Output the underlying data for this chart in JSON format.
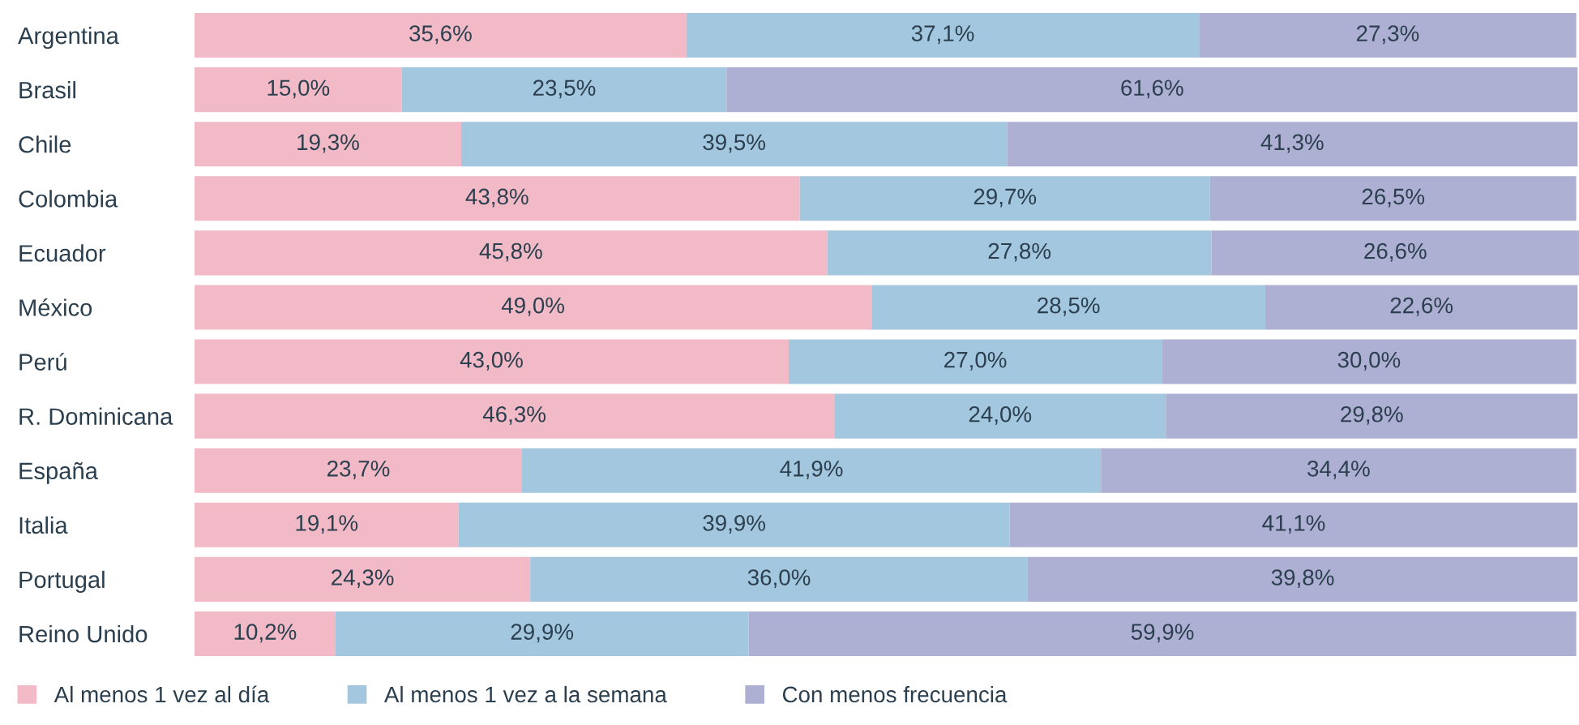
{
  "chart_data": {
    "type": "bar",
    "orientation": "horizontal",
    "stacked": true,
    "tick_labels": "y",
    "legend": "bottom",
    "grid": false,
    "categories": [
      "Argentina",
      "Brasil",
      "Chile",
      "Colombia",
      "Ecuador",
      "México",
      "Perú",
      "R. Dominicana",
      "España",
      "Italia",
      "Portugal",
      "Reino Unido"
    ],
    "series": [
      {
        "name": "Al menos 1 vez al día",
        "color": "#f1bac6",
        "values": [
          35.6,
          15.0,
          19.3,
          43.8,
          45.8,
          49.0,
          43.0,
          46.3,
          23.7,
          19.1,
          24.3,
          10.2
        ],
        "value_labels": [
          "35,6%",
          "15,0%",
          "19,3%",
          "43,8%",
          "45,8%",
          "49,0%",
          "43,0%",
          "46,3%",
          "23,7%",
          "19,1%",
          "24,3%",
          "10,2%"
        ]
      },
      {
        "name": "Al menos 1 vez a la semana",
        "color": "#a3c7de",
        "values": [
          37.1,
          23.5,
          39.5,
          29.7,
          27.8,
          28.5,
          27.0,
          24.0,
          41.9,
          39.9,
          36.0,
          29.9
        ],
        "value_labels": [
          "37,1%",
          "23,5%",
          "39,5%",
          "29,7%",
          "27,8%",
          "28,5%",
          "27,0%",
          "24,0%",
          "41,9%",
          "39,9%",
          "36,0%",
          "29,9%"
        ]
      },
      {
        "name": "Con menos frecuencia",
        "color": "#adafd3",
        "values": [
          27.3,
          61.6,
          41.3,
          26.5,
          26.6,
          22.6,
          30.0,
          29.8,
          34.4,
          41.1,
          39.8,
          59.9
        ],
        "value_labels": [
          "27,3%",
          "61,6%",
          "41,3%",
          "26,5%",
          "26,6%",
          "22,6%",
          "30,0%",
          "29,8%",
          "34,4%",
          "41,1%",
          "39,8%",
          "59,9%"
        ]
      }
    ]
  }
}
